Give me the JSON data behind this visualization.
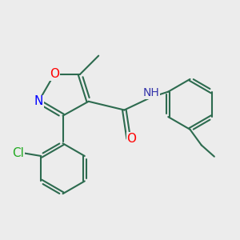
{
  "bg_color": "#ececec",
  "bond_color": "#2d6b4f",
  "bond_width": 1.5,
  "atom_colors": {
    "O": "#ff0000",
    "N_ring": "#0000ff",
    "N_amide": "#3333aa",
    "Cl": "#22aa22",
    "C": "#2d6b4f"
  },
  "font_size_atom": 11,
  "fig_size": [
    3.0,
    3.0
  ],
  "dpi": 100
}
